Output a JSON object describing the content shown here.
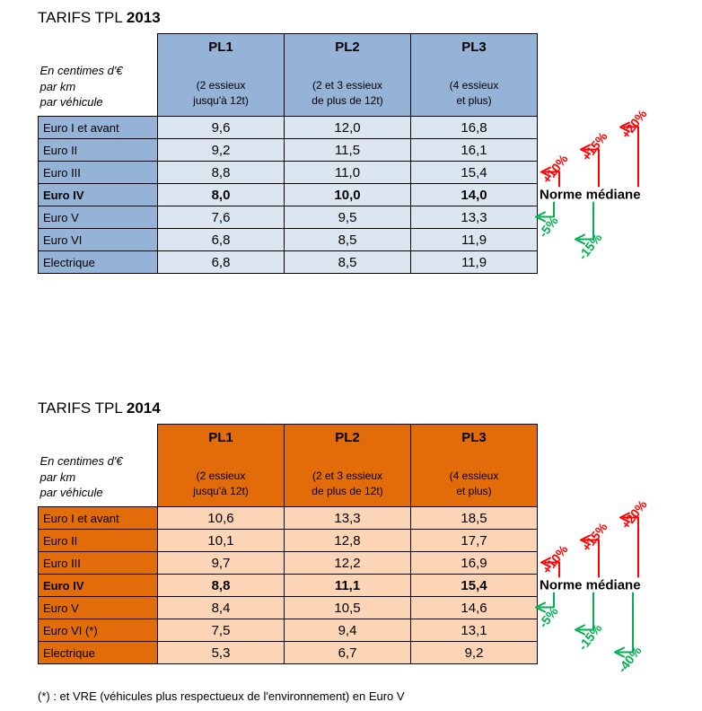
{
  "page": {
    "footnote": "(*) : et VRE (véhicules plus respectueux de l'environnement) en Euro V"
  },
  "tables": [
    {
      "id": "2013",
      "title_prefix": "TARIFS TPL",
      "title_year": "2013",
      "unit_label_lines": [
        "En centimes d'€",
        "par km",
        "par véhicule"
      ],
      "theme": {
        "header_bg": "#95B3D7",
        "cell_bg": "#DCE6F1"
      },
      "columns": [
        {
          "name": "PL1",
          "subtitle_lines": [
            "(2 essieux",
            "jusqu'à 12t)"
          ]
        },
        {
          "name": "PL2",
          "subtitle_lines": [
            "(2 et 3 essieux",
            "de plus de 12t)"
          ]
        },
        {
          "name": "PL3",
          "subtitle_lines": [
            "(4 essieux",
            "et plus)"
          ]
        }
      ],
      "rows": [
        {
          "label": "Euro I et avant",
          "values": [
            "9,6",
            "12,0",
            "16,8"
          ],
          "bold": false
        },
        {
          "label": "Euro II",
          "values": [
            "9,2",
            "11,5",
            "16,1"
          ],
          "bold": false
        },
        {
          "label": "Euro III",
          "values": [
            "8,8",
            "11,0",
            "15,4"
          ],
          "bold": false
        },
        {
          "label": "Euro IV",
          "values": [
            "8,0",
            "10,0",
            "14,0"
          ],
          "bold": true
        },
        {
          "label": "Euro V",
          "values": [
            "7,6",
            "9,5",
            "13,3"
          ],
          "bold": false
        },
        {
          "label": "Euro VI",
          "values": [
            "6,8",
            "8,5",
            "11,9"
          ],
          "bold": false
        },
        {
          "label": "Electrique",
          "values": [
            "6,8",
            "8,5",
            "11,9"
          ],
          "bold": false
        }
      ],
      "median_row_index": 3,
      "median_label": "Norme médiane",
      "up_annotations": [
        {
          "label": "+10%",
          "target_row": 2
        },
        {
          "label": "+15%",
          "target_row": 1
        },
        {
          "label": "+20%",
          "target_row": 0
        }
      ],
      "down_annotations": [
        {
          "label": "-5%",
          "target_row": 4
        },
        {
          "label": "-15%",
          "target_row": 5
        }
      ],
      "annotation_colors": {
        "up": "#FF0000",
        "down": "#00B050"
      }
    },
    {
      "id": "2014",
      "title_prefix": "TARIFS TPL",
      "title_year": "2014",
      "unit_label_lines": [
        "En centimes d'€",
        "par km",
        "par véhicule"
      ],
      "theme": {
        "header_bg": "#E36C0A",
        "cell_bg": "#FBD5B5"
      },
      "columns": [
        {
          "name": "PL1",
          "subtitle_lines": [
            "(2 essieux",
            "jusqu'à 12t)"
          ]
        },
        {
          "name": "PL2",
          "subtitle_lines": [
            "(2 et 3 essieux",
            "de plus de 12t)"
          ]
        },
        {
          "name": "PL3",
          "subtitle_lines": [
            "(4 essieux",
            "et plus)"
          ]
        }
      ],
      "rows": [
        {
          "label": "Euro I et avant",
          "values": [
            "10,6",
            "13,3",
            "18,5"
          ],
          "bold": false
        },
        {
          "label": "Euro II",
          "values": [
            "10,1",
            "12,8",
            "17,7"
          ],
          "bold": false
        },
        {
          "label": "Euro III",
          "values": [
            "9,7",
            "12,2",
            "16,9"
          ],
          "bold": false
        },
        {
          "label": "Euro IV",
          "values": [
            "8,8",
            "11,1",
            "15,4"
          ],
          "bold": true
        },
        {
          "label": "Euro V",
          "values": [
            "8,4",
            "10,5",
            "14,6"
          ],
          "bold": false
        },
        {
          "label": "Euro VI (*)",
          "values": [
            "7,5",
            "9,4",
            "13,1"
          ],
          "bold": false
        },
        {
          "label": "Electrique",
          "values": [
            "5,3",
            "6,7",
            "9,2"
          ],
          "bold": false
        }
      ],
      "median_row_index": 3,
      "median_label": "Norme médiane",
      "up_annotations": [
        {
          "label": "+10%",
          "target_row": 2
        },
        {
          "label": "+15%",
          "target_row": 1
        },
        {
          "label": "+20%",
          "target_row": 0
        }
      ],
      "down_annotations": [
        {
          "label": "-5%",
          "target_row": 4
        },
        {
          "label": "-15%",
          "target_row": 5
        },
        {
          "label": "-40%",
          "target_row": 6
        }
      ],
      "annotation_colors": {
        "up": "#FF0000",
        "down": "#00B050"
      }
    }
  ]
}
